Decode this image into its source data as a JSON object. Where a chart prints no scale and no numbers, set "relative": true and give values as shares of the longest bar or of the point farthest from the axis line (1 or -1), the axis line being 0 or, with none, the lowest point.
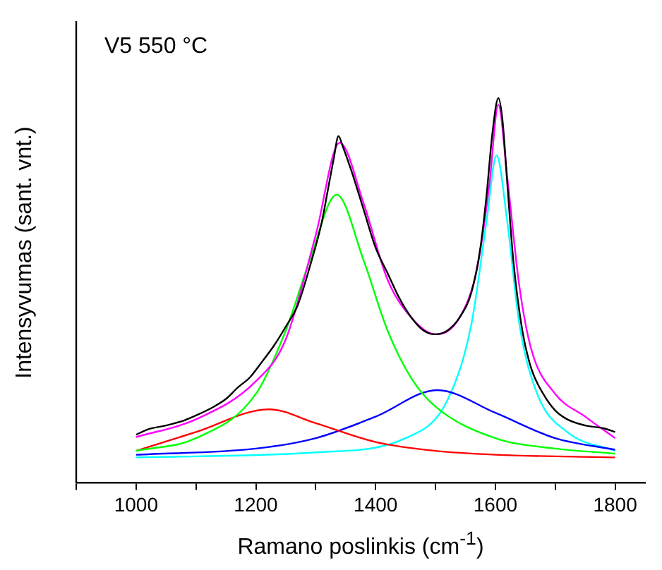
{
  "chart_data": {
    "type": "line",
    "relative": true,
    "xlabel": "Ramano poslinkis (cm$^{-1}$)",
    "ylabel": "Intensyvumas (sant. vnt.)",
    "annotations": [
      "V5 550 °C"
    ],
    "xlim": [
      900,
      1850
    ],
    "xticks": [
      {
        "value": 900,
        "label": null
      },
      1000,
      {
        "value": 1100,
        "label": null
      },
      1200,
      {
        "value": 1300,
        "label": null
      },
      1400,
      {
        "value": 1500,
        "label": null
      },
      1600,
      {
        "value": 1700,
        "label": null
      },
      1800
    ],
    "grid": false,
    "legend": false,
    "marker": "none",
    "line_style": "solid",
    "series": [
      {
        "color": "#000000",
        "x": [
          1000,
          1020,
          1050,
          1080,
          1100,
          1130,
          1150,
          1170,
          1190,
          1210,
          1230,
          1250,
          1270,
          1290,
          1310,
          1320,
          1330,
          1338,
          1345,
          1360,
          1380,
          1400,
          1420,
          1440,
          1460,
          1480,
          1500,
          1520,
          1540,
          1560,
          1575,
          1585,
          1595,
          1605,
          1612,
          1620,
          1630,
          1645,
          1660,
          1680,
          1700,
          1720,
          1750,
          1780,
          1800
        ],
        "values": [
          0.125,
          0.139,
          0.149,
          0.162,
          0.175,
          0.198,
          0.218,
          0.248,
          0.274,
          0.314,
          0.356,
          0.406,
          0.462,
          0.561,
          0.677,
          0.759,
          0.842,
          0.901,
          0.875,
          0.809,
          0.71,
          0.611,
          0.545,
          0.479,
          0.429,
          0.396,
          0.386,
          0.396,
          0.429,
          0.495,
          0.611,
          0.743,
          0.908,
          1,
          0.941,
          0.776,
          0.578,
          0.396,
          0.297,
          0.231,
          0.188,
          0.165,
          0.149,
          0.142,
          0.132
        ]
      },
      {
        "color": "#ff00ff",
        "x": [
          1000,
          1100,
          1200,
          1250,
          1300,
          1340,
          1380,
          1420,
          1460,
          1500,
          1540,
          1570,
          1590,
          1605,
          1620,
          1640,
          1660,
          1700,
          1750,
          1800
        ],
        "values": [
          0.119,
          0.165,
          0.264,
          0.373,
          0.644,
          0.884,
          0.726,
          0.528,
          0.429,
          0.386,
          0.429,
          0.561,
          0.776,
          0.983,
          0.792,
          0.512,
          0.347,
          0.231,
          0.172,
          0.116
        ]
      },
      {
        "color": "#00ff00",
        "x": [
          1000,
          1100,
          1200,
          1250,
          1290,
          1335,
          1380,
          1420,
          1460,
          1500,
          1600,
          1700,
          1800
        ],
        "values": [
          0.083,
          0.116,
          0.231,
          0.396,
          0.578,
          0.749,
          0.578,
          0.396,
          0.271,
          0.198,
          0.116,
          0.089,
          0.076
        ]
      },
      {
        "color": "#ff0000",
        "x": [
          1000,
          1100,
          1222,
          1300,
          1400,
          1500,
          1600,
          1800
        ],
        "values": [
          0.083,
          0.132,
          0.191,
          0.155,
          0.106,
          0.083,
          0.073,
          0.066
        ]
      },
      {
        "color": "#0000ff",
        "x": [
          1000,
          1200,
          1300,
          1400,
          1503,
          1600,
          1700,
          1800
        ],
        "values": [
          0.073,
          0.089,
          0.116,
          0.172,
          0.241,
          0.182,
          0.116,
          0.086
        ]
      },
      {
        "color": "#00ffff",
        "x": [
          1000,
          1300,
          1450,
          1520,
          1560,
          1585,
          1602,
          1620,
          1640,
          1670,
          1720,
          1800
        ],
        "values": [
          0.066,
          0.079,
          0.116,
          0.215,
          0.413,
          0.677,
          0.851,
          0.677,
          0.413,
          0.231,
          0.132,
          0.083
        ]
      }
    ]
  }
}
